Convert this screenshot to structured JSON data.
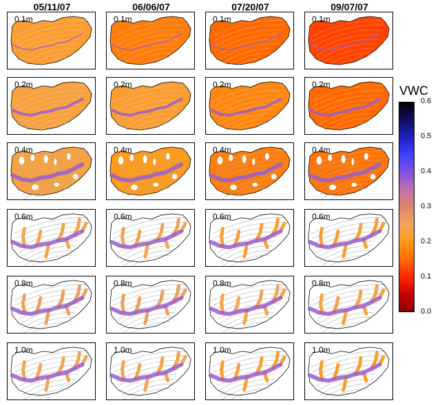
{
  "columns": [
    "05/11/07",
    "06/06/07",
    "07/20/07",
    "09/07/07"
  ],
  "depths": [
    "0.1m",
    "0.2m",
    "0.4m",
    "0.6m",
    "0.8m",
    "1.0m"
  ],
  "colorbar": {
    "title": "VWC",
    "ticks": [
      "0.6",
      "0.5",
      "0.4",
      "0.3",
      "0.2",
      "0.1",
      "0.0"
    ],
    "range": [
      0.0,
      0.6
    ],
    "stops": [
      "#8b0000",
      "#cc0000",
      "#ff2a00",
      "#ff6a00",
      "#ff9a1a",
      "#f2a55a",
      "#e0856a",
      "#c070b0",
      "#8050e0",
      "#4040ff",
      "#2020c0",
      "#101060",
      "#000000"
    ]
  },
  "chart_data": {
    "type": "heatmap",
    "title": "",
    "colorbar_label": "VWC",
    "value_range": [
      0.0,
      0.6
    ],
    "rows": [
      "0.1m",
      "0.2m",
      "0.4m",
      "0.6m",
      "0.8m",
      "1.0m"
    ],
    "columns": [
      "05/11/07",
      "06/06/07",
      "07/20/07",
      "09/07/07"
    ],
    "background_vwc": [
      [
        0.22,
        0.17,
        0.15,
        0.12
      ],
      [
        0.23,
        0.22,
        0.18,
        0.15
      ],
      [
        0.23,
        0.2,
        0.17,
        0.16
      ],
      [
        0.24,
        0.24,
        0.22,
        0.22
      ],
      [
        0.26,
        0.26,
        0.24,
        0.23
      ],
      [
        0.25,
        0.24,
        0.22,
        0.21
      ]
    ],
    "channel_vwc": [
      [
        0.38,
        0.38,
        0.38,
        0.38
      ],
      [
        0.38,
        0.38,
        0.38,
        0.38
      ],
      [
        0.38,
        0.38,
        0.38,
        0.38
      ],
      [
        0.38,
        0.38,
        0.38,
        0.38
      ],
      [
        0.38,
        0.38,
        0.38,
        0.38
      ],
      [
        0.38,
        0.38,
        0.38,
        0.38
      ]
    ],
    "coverage": [
      "full",
      "full",
      "patchy",
      "branches",
      "branches",
      "branches"
    ]
  }
}
